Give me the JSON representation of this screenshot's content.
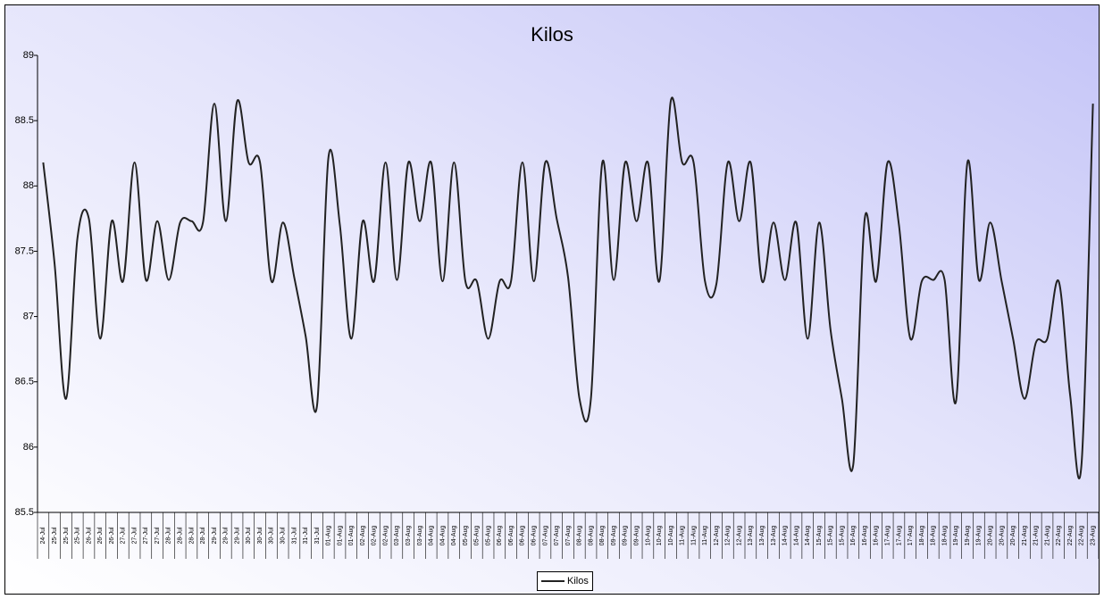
{
  "chart_data": {
    "type": "line",
    "title": "Kilos",
    "categories": [
      "24-Jul",
      "25-Jul",
      "25-Jul",
      "25-Jul",
      "26-Jul",
      "26-Jul",
      "26-Jul",
      "27-Jul",
      "27-Jul",
      "27-Jul",
      "27-Jul",
      "28-Jul",
      "28-Jul",
      "28-Jul",
      "28-Jul",
      "29-Jul",
      "29-Jul",
      "29-Jul",
      "30-Jul",
      "30-Jul",
      "30-Jul",
      "30-Jul",
      "31-Jul",
      "31-Jul",
      "31-Jul",
      "01-Aug",
      "01-Aug",
      "01-Aug",
      "02-Aug",
      "02-Aug",
      "02-Aug",
      "03-Aug",
      "03-Aug",
      "03-Aug",
      "04-Aug",
      "04-Aug",
      "04-Aug",
      "05-Aug",
      "05-Aug",
      "05-Aug",
      "06-Aug",
      "06-Aug",
      "06-Aug",
      "06-Aug",
      "07-Aug",
      "07-Aug",
      "07-Aug",
      "08-Aug",
      "08-Aug",
      "08-Aug",
      "09-Aug",
      "09-Aug",
      "09-Aug",
      "10-Aug",
      "10-Aug",
      "10-Aug",
      "11-Aug",
      "11-Aug",
      "11-Aug",
      "12-Aug",
      "12-Aug",
      "12-Aug",
      "13-Aug",
      "13-Aug",
      "13-Aug",
      "14-Aug",
      "14-Aug",
      "14-Aug",
      "15-Aug",
      "15-Aug",
      "15-Aug",
      "16-Aug",
      "16-Aug",
      "16-Aug",
      "17-Aug",
      "17-Aug",
      "17-Aug",
      "18-Aug",
      "18-Aug",
      "18-Aug",
      "19-Aug",
      "19-Aug",
      "19-Aug",
      "20-Aug",
      "20-Aug",
      "20-Aug",
      "21-Aug",
      "21-Aug",
      "21-Aug",
      "22-Aug",
      "22-Aug",
      "22-Aug",
      "23-Aug"
    ],
    "series": [
      {
        "name": "Kilos",
        "color": "#222222",
        "values": [
          88.18,
          87.4,
          86.37,
          87.6,
          87.75,
          86.83,
          87.73,
          87.27,
          88.18,
          87.28,
          87.73,
          87.28,
          87.72,
          87.73,
          87.72,
          88.63,
          87.73,
          88.65,
          88.18,
          88.18,
          87.27,
          87.72,
          87.3,
          86.85,
          86.32,
          88.22,
          87.7,
          86.83,
          87.73,
          87.27,
          88.18,
          87.28,
          88.18,
          87.73,
          88.18,
          87.27,
          88.18,
          87.27,
          87.27,
          86.83,
          87.27,
          87.27,
          88.18,
          87.27,
          88.18,
          87.75,
          87.3,
          86.37,
          86.37,
          88.18,
          87.28,
          88.18,
          87.73,
          88.18,
          87.27,
          88.65,
          88.18,
          88.18,
          87.27,
          87.25,
          88.18,
          87.73,
          88.18,
          87.27,
          87.72,
          87.28,
          87.72,
          86.83,
          87.72,
          86.9,
          86.37,
          85.87,
          87.75,
          87.27,
          88.18,
          87.7,
          86.83,
          87.27,
          87.28,
          87.28,
          86.35,
          88.18,
          87.28,
          87.72,
          87.27,
          86.83,
          86.37,
          86.8,
          86.83,
          87.27,
          86.4,
          85.87,
          88.63
        ]
      }
    ],
    "ylim": [
      85.5,
      89
    ],
    "yticks": [
      85.5,
      86,
      86.5,
      87,
      87.5,
      88,
      88.5,
      89
    ],
    "legend": "bottom"
  }
}
